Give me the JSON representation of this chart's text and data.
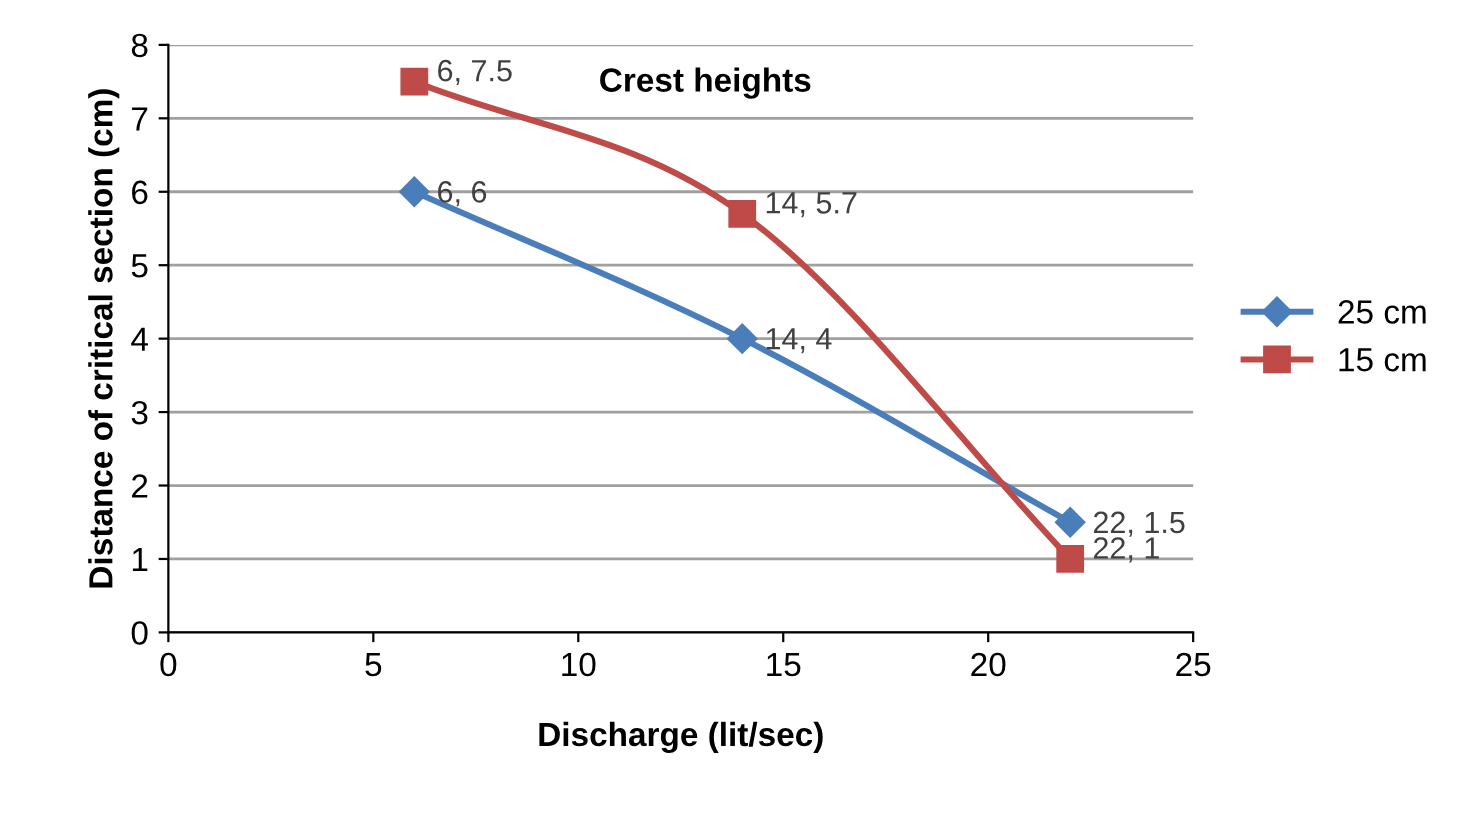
{
  "chart_data": {
    "type": "line",
    "xlabel": "Discharge (lit/sec)",
    "ylabel": "Distance of critical section (cm)",
    "annotations": [
      "Crest heights"
    ],
    "series": [
      {
        "name": "25 cm",
        "color": "#4a7ebb",
        "marker": "diamond",
        "x": [
          6,
          14,
          22
        ],
        "values": [
          6,
          4,
          1.5
        ],
        "value_labels": [
          "6, 6",
          "14, 4",
          "22, 1.5"
        ]
      },
      {
        "name": "15 cm",
        "color": "#be4b48",
        "marker": "square",
        "x": [
          6,
          14,
          22
        ],
        "values": [
          7.5,
          5.7,
          1
        ],
        "value_labels": [
          "6, 7.5",
          "14, 5.7",
          "22, 1"
        ]
      }
    ],
    "xlim": [
      0,
      25
    ],
    "xticks": [
      0,
      5,
      10,
      15,
      20,
      25
    ],
    "ylim": [
      0,
      8
    ],
    "yticks": [
      0,
      1,
      2,
      3,
      4,
      5,
      6,
      7,
      8
    ],
    "grid": "y",
    "legend": "right",
    "line_style": "solid"
  }
}
